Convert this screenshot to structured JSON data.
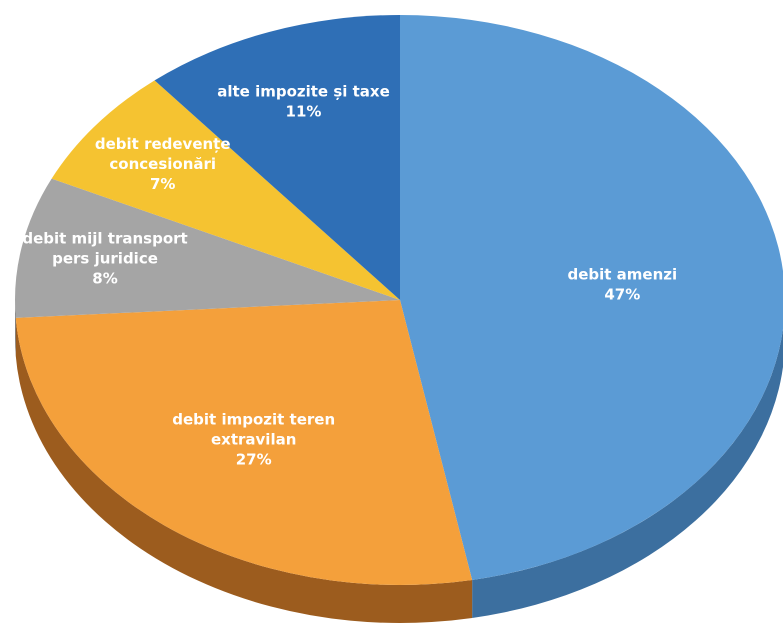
{
  "chart_data": {
    "type": "pie",
    "style": "3d",
    "title": "",
    "slices": [
      {
        "label_lines": [
          "debit amenzi"
        ],
        "value_label": "47%",
        "value": 47,
        "color": "#5b9bd5",
        "side_color": "#3c6f9f"
      },
      {
        "label_lines": [
          "debit impozit teren",
          "extravilan"
        ],
        "value_label": "27%",
        "value": 27,
        "color": "#f4a03b",
        "side_color": "#9c5c1e"
      },
      {
        "label_lines": [
          "debit mijl transport",
          "pers juridice"
        ],
        "value_label": "8%",
        "value": 8,
        "color": "#a5a5a5",
        "side_color": "#6e6e6e"
      },
      {
        "label_lines": [
          "debit redevențe",
          "concesionări"
        ],
        "value_label": "7%",
        "value": 7,
        "color": "#f5c331",
        "side_color": "#a9861d"
      },
      {
        "label_lines": [
          "alte impozite și taxe"
        ],
        "value_label": "11%",
        "value": 11,
        "color": "#2f6fb6",
        "side_color": "#1f4d80"
      }
    ]
  }
}
